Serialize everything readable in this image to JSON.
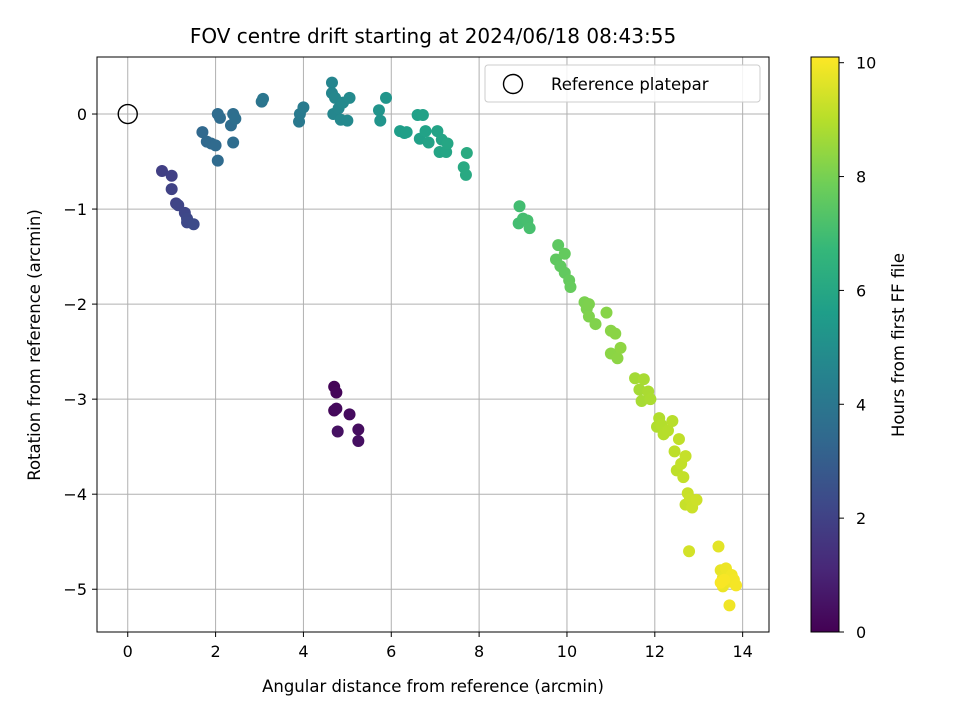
{
  "chart_data": {
    "type": "scatter",
    "title": "FOV centre drift starting at 2024/06/18 08:43:55",
    "xlabel": "Angular distance from reference (arcmin)",
    "ylabel": "Rotation from reference (arcmin)",
    "xlim": [
      -0.7,
      14.6
    ],
    "ylim": [
      -5.45,
      0.6
    ],
    "xticks": [
      0,
      2,
      4,
      6,
      8,
      10,
      12,
      14
    ],
    "yticks": [
      0,
      -1,
      -2,
      -3,
      -4,
      -5
    ],
    "grid": true,
    "legend": {
      "placement": "top-right",
      "entries": [
        "Reference platepar"
      ]
    },
    "reference_point": {
      "x": 0,
      "y": 0,
      "style": "hollow-circle"
    },
    "colorbar": {
      "label": "Hours from first FF file",
      "colormap": "viridis",
      "range": [
        0,
        10.1
      ],
      "ticks": [
        0,
        2,
        4,
        6,
        8,
        10
      ]
    },
    "points": [
      [
        4.7,
        -2.87,
        0.1
      ],
      [
        4.75,
        -2.93,
        0.15
      ],
      [
        4.7,
        -3.12,
        0.2
      ],
      [
        4.75,
        -3.1,
        0.25
      ],
      [
        5.05,
        -3.16,
        0.3
      ],
      [
        5.25,
        -3.32,
        0.35
      ],
      [
        5.25,
        -3.44,
        0.4
      ],
      [
        4.78,
        -3.34,
        0.45
      ],
      [
        0.78,
        -0.6,
        1.9
      ],
      [
        1.0,
        -0.65,
        1.95
      ],
      [
        1.0,
        -0.79,
        2.0
      ],
      [
        1.1,
        -0.94,
        2.05
      ],
      [
        1.15,
        -0.96,
        2.1
      ],
      [
        1.3,
        -1.04,
        2.15
      ],
      [
        1.35,
        -1.1,
        2.2
      ],
      [
        1.35,
        -1.14,
        2.25
      ],
      [
        1.5,
        -1.16,
        2.3
      ],
      [
        1.7,
        -0.19,
        3.4
      ],
      [
        1.8,
        -0.29,
        3.42
      ],
      [
        1.9,
        -0.31,
        3.45
      ],
      [
        2.0,
        -0.33,
        3.48
      ],
      [
        2.05,
        -0.49,
        3.5
      ],
      [
        2.05,
        0.0,
        3.52
      ],
      [
        2.1,
        -0.04,
        3.55
      ],
      [
        2.35,
        -0.12,
        3.58
      ],
      [
        2.4,
        -0.3,
        3.6
      ],
      [
        2.4,
        0.0,
        3.62
      ],
      [
        2.45,
        -0.05,
        3.65
      ],
      [
        3.05,
        0.13,
        3.9
      ],
      [
        3.08,
        0.16,
        3.95
      ],
      [
        3.9,
        -0.08,
        4.1
      ],
      [
        3.92,
        0.0,
        4.15
      ],
      [
        4.0,
        0.07,
        4.2
      ],
      [
        4.65,
        0.33,
        4.6
      ],
      [
        4.65,
        0.22,
        4.62
      ],
      [
        4.68,
        0.0,
        4.65
      ],
      [
        4.72,
        0.17,
        4.68
      ],
      [
        4.8,
        0.06,
        4.7
      ],
      [
        4.85,
        -0.06,
        4.72
      ],
      [
        4.9,
        0.12,
        4.75
      ],
      [
        5.0,
        -0.07,
        4.78
      ],
      [
        5.05,
        0.17,
        4.8
      ],
      [
        5.72,
        0.04,
        5.2
      ],
      [
        5.75,
        -0.07,
        5.22
      ],
      [
        5.88,
        0.17,
        5.25
      ],
      [
        6.2,
        -0.18,
        5.6
      ],
      [
        6.3,
        -0.2,
        5.62
      ],
      [
        6.35,
        -0.19,
        5.65
      ],
      [
        6.6,
        -0.01,
        5.7
      ],
      [
        6.65,
        -0.26,
        5.72
      ],
      [
        6.72,
        -0.01,
        5.75
      ],
      [
        6.78,
        -0.18,
        5.78
      ],
      [
        6.85,
        -0.3,
        5.8
      ],
      [
        7.05,
        -0.18,
        5.85
      ],
      [
        7.1,
        -0.4,
        5.88
      ],
      [
        7.15,
        -0.27,
        5.9
      ],
      [
        7.25,
        -0.4,
        5.92
      ],
      [
        7.28,
        -0.31,
        5.95
      ],
      [
        7.65,
        -0.56,
        6.1
      ],
      [
        7.7,
        -0.64,
        6.12
      ],
      [
        7.72,
        -0.41,
        6.15
      ],
      [
        8.92,
        -0.97,
        7.0
      ],
      [
        8.9,
        -1.15,
        7.02
      ],
      [
        9.0,
        -1.1,
        7.05
      ],
      [
        9.1,
        -1.12,
        7.08
      ],
      [
        9.15,
        -1.2,
        7.1
      ],
      [
        9.8,
        -1.38,
        7.55
      ],
      [
        9.75,
        -1.53,
        7.58
      ],
      [
        9.85,
        -1.6,
        7.6
      ],
      [
        9.95,
        -1.67,
        7.62
      ],
      [
        9.95,
        -1.47,
        7.65
      ],
      [
        10.05,
        -1.75,
        7.68
      ],
      [
        10.08,
        -1.82,
        7.7
      ],
      [
        10.4,
        -1.98,
        8.05
      ],
      [
        10.45,
        -2.05,
        8.08
      ],
      [
        10.5,
        -2.0,
        8.1
      ],
      [
        10.5,
        -2.13,
        8.12
      ],
      [
        10.65,
        -2.21,
        8.15
      ],
      [
        10.9,
        -2.09,
        8.25
      ],
      [
        11.0,
        -2.28,
        8.28
      ],
      [
        11.1,
        -2.31,
        8.3
      ],
      [
        11.0,
        -2.52,
        8.32
      ],
      [
        11.15,
        -2.57,
        8.35
      ],
      [
        11.22,
        -2.46,
        8.38
      ],
      [
        11.55,
        -2.78,
        8.7
      ],
      [
        11.65,
        -2.9,
        8.72
      ],
      [
        11.7,
        -3.02,
        8.75
      ],
      [
        11.75,
        -2.79,
        8.78
      ],
      [
        11.85,
        -2.92,
        8.8
      ],
      [
        11.9,
        -3.0,
        8.82
      ],
      [
        12.05,
        -3.29,
        8.9
      ],
      [
        12.1,
        -3.2,
        8.92
      ],
      [
        12.15,
        -3.27,
        8.95
      ],
      [
        12.2,
        -3.37,
        8.98
      ],
      [
        12.3,
        -3.33,
        9.0
      ],
      [
        12.4,
        -3.23,
        9.02
      ],
      [
        12.45,
        -3.55,
        9.1
      ],
      [
        12.5,
        -3.75,
        9.12
      ],
      [
        12.55,
        -3.42,
        9.15
      ],
      [
        12.6,
        -3.68,
        9.18
      ],
      [
        12.65,
        -3.82,
        9.2
      ],
      [
        12.7,
        -3.6,
        9.22
      ],
      [
        12.7,
        -4.11,
        9.25
      ],
      [
        12.75,
        -3.99,
        9.28
      ],
      [
        12.8,
        -4.05,
        9.3
      ],
      [
        12.85,
        -4.14,
        9.32
      ],
      [
        12.95,
        -4.06,
        9.35
      ],
      [
        12.78,
        -4.6,
        9.45
      ],
      [
        13.45,
        -4.55,
        9.7
      ],
      [
        13.5,
        -4.8,
        9.75
      ],
      [
        13.55,
        -4.88,
        9.8
      ],
      [
        13.55,
        -4.97,
        9.82
      ],
      [
        13.62,
        -4.78,
        9.85
      ],
      [
        13.7,
        -4.92,
        9.88
      ],
      [
        13.7,
        -5.17,
        9.9
      ],
      [
        13.75,
        -4.85,
        9.92
      ],
      [
        13.8,
        -4.9,
        9.95
      ],
      [
        13.85,
        -4.96,
        9.98
      ],
      [
        13.58,
        -4.9,
        10.0
      ],
      [
        13.5,
        -4.93,
        10.02
      ]
    ]
  }
}
